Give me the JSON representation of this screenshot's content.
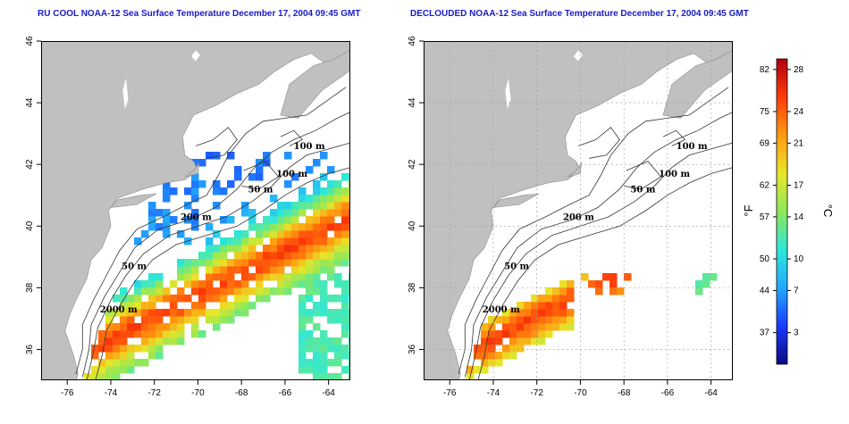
{
  "panels": [
    {
      "title": "RU COOL NOAA-12 Sea Surface Temperature December 17, 2004 09:45 GMT",
      "contour_labels": [
        "100 m",
        "100 m",
        "50 m",
        "200 m",
        "50 m",
        "2000 m"
      ]
    },
    {
      "title": "DECLOUDED NOAA-12 Sea Surface Temperature December 17, 2004 09:45 GMT",
      "contour_labels": [
        "100 m",
        "100 m",
        "50 m",
        "200 m",
        "50 m",
        "2000 m"
      ]
    }
  ],
  "axes": {
    "lon_ticks": [
      "-76",
      "-74",
      "-72",
      "-70",
      "-68",
      "-66",
      "-64"
    ],
    "lat_ticks": [
      "36",
      "38",
      "40",
      "42",
      "44",
      "46"
    ],
    "lon_range": [
      -77.2,
      -63.0
    ],
    "lat_range": [
      35.0,
      46.0
    ]
  },
  "colorbar": {
    "fahrenheit_label": "°F",
    "celsius_label": "°C",
    "fahrenheit_ticks": [
      "82",
      "75",
      "69",
      "62",
      "57",
      "50",
      "44",
      "37"
    ],
    "celsius_ticks": [
      "28",
      "24",
      "21",
      "17",
      "14",
      "10",
      "7",
      "3"
    ],
    "celsius_values": [
      28,
      24,
      21,
      17,
      14,
      10,
      7,
      3
    ],
    "range_c": [
      0,
      29
    ],
    "colors": [
      "#0a0a80",
      "#1a3aff",
      "#22a8ff",
      "#2ee8d8",
      "#8ee85a",
      "#e8e628",
      "#ff9a10",
      "#ff3a08",
      "#b00010"
    ]
  },
  "colors": {
    "land": "#c0c0c0",
    "ocean": "#ffffff",
    "title": "#1a1acc"
  }
}
